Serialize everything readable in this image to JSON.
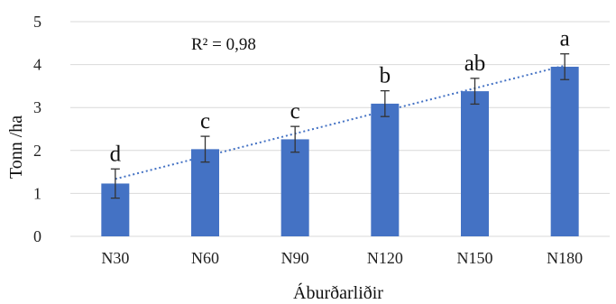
{
  "chart_data": {
    "type": "bar",
    "categories": [
      "N30",
      "N60",
      "N90",
      "N120",
      "N150",
      "N180"
    ],
    "values": [
      1.23,
      2.03,
      2.26,
      3.09,
      3.38,
      3.95
    ],
    "errors": [
      0.34,
      0.3,
      0.3,
      0.3,
      0.3,
      0.3
    ],
    "significance_letters": [
      "d",
      "c",
      "c",
      "b",
      "ab",
      "a"
    ],
    "ylabel": "Tonn /ha",
    "xlabel": "Áburðarliðir",
    "ylim": [
      0,
      5
    ],
    "yticks": [
      "0",
      "1",
      "2",
      "3",
      "4",
      "5"
    ],
    "grid": true,
    "trendline": {
      "type": "linear",
      "label": "R² = 0,98",
      "style": "dotted"
    },
    "bar_color": "#4472c4"
  }
}
